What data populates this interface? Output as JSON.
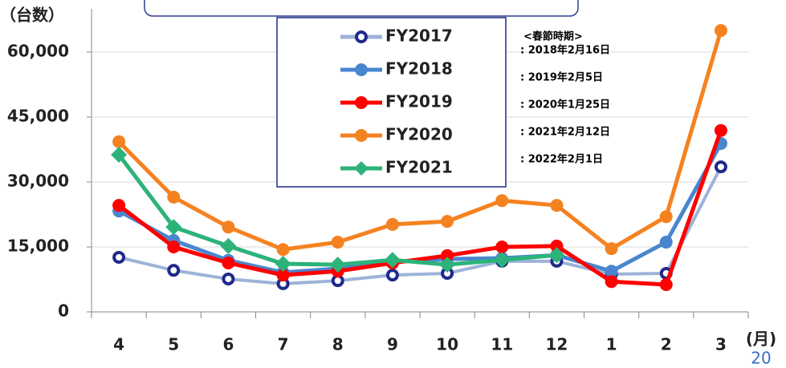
{
  "chart_data": {
    "type": "line",
    "unit_label": "（台数）",
    "x_unit_label": "(月)",
    "page_number": "20",
    "categories": [
      "4",
      "5",
      "6",
      "7",
      "8",
      "9",
      "10",
      "11",
      "12",
      "1",
      "2",
      "3"
    ],
    "ylim": [
      0,
      70000
    ],
    "yticks": [
      0,
      {
        "value": 15000,
        "label": "15,000"
      },
      {
        "value": 30000,
        "label": "30,000"
      },
      {
        "value": 45000,
        "label": "45,000"
      },
      {
        "value": 60000,
        "label": "60,000"
      }
    ],
    "grid": true,
    "series": [
      {
        "name": "FY2017",
        "color": "#9db3d8",
        "marker": "open-circle",
        "values": [
          12600,
          9600,
          7600,
          6500,
          7200,
          8500,
          8900,
          11700,
          11700,
          8700,
          8900,
          33500
        ]
      },
      {
        "name": "FY2018",
        "color": "#4a86cf",
        "marker": "circle",
        "values": [
          23300,
          16500,
          11900,
          9100,
          10000,
          11500,
          12200,
          12400,
          13100,
          9400,
          16100,
          38900
        ]
      },
      {
        "name": "FY2019",
        "color": "#ff0000",
        "marker": "circle",
        "values": [
          24600,
          15000,
          11300,
          8500,
          9400,
          11300,
          13000,
          15000,
          15200,
          7000,
          6300,
          41900
        ]
      },
      {
        "name": "FY2020",
        "color": "#f58220",
        "marker": "circle",
        "values": [
          39300,
          26500,
          19600,
          14400,
          16100,
          20200,
          20900,
          25700,
          24600,
          14600,
          22000,
          65000
        ]
      },
      {
        "name": "FY2021",
        "color": "#2cb37a",
        "marker": "diamond",
        "values": [
          36300,
          19600,
          15200,
          11100,
          10900,
          12000,
          10900,
          12000,
          13100,
          null,
          null,
          null
        ]
      }
    ],
    "annotations": [
      "<春節時期>",
      ": 2018年2月16日",
      ": 2019年2月5日",
      ": 2020年1月25日",
      ": 2021年2月12日",
      ": 2022年2月1日"
    ]
  }
}
